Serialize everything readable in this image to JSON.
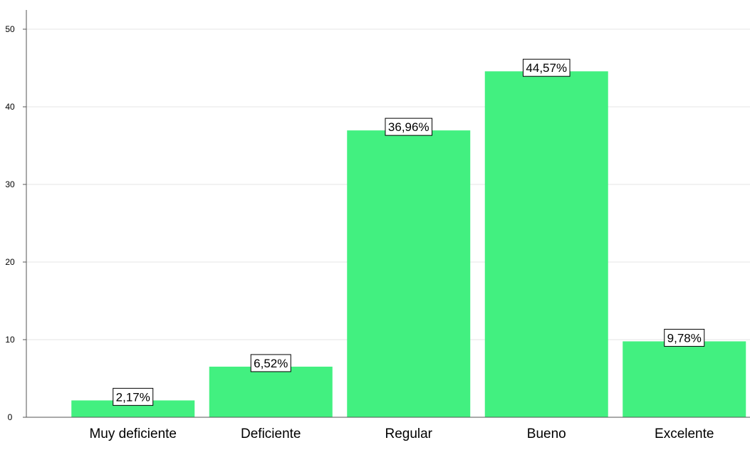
{
  "chart_data": {
    "type": "bar",
    "categories": [
      "Muy deficiente",
      "Deficiente",
      "Regular",
      "Bueno",
      "Excelente"
    ],
    "values": [
      2.17,
      6.52,
      36.96,
      44.57,
      9.78
    ],
    "data_labels": [
      "2,17%",
      "6,52%",
      "36,96%",
      "44,57%",
      "9,78%"
    ],
    "ylim": [
      0,
      50
    ],
    "yticks": [
      0,
      10,
      20,
      30,
      40,
      50
    ],
    "grid": true,
    "bar_color": "#42f080"
  }
}
